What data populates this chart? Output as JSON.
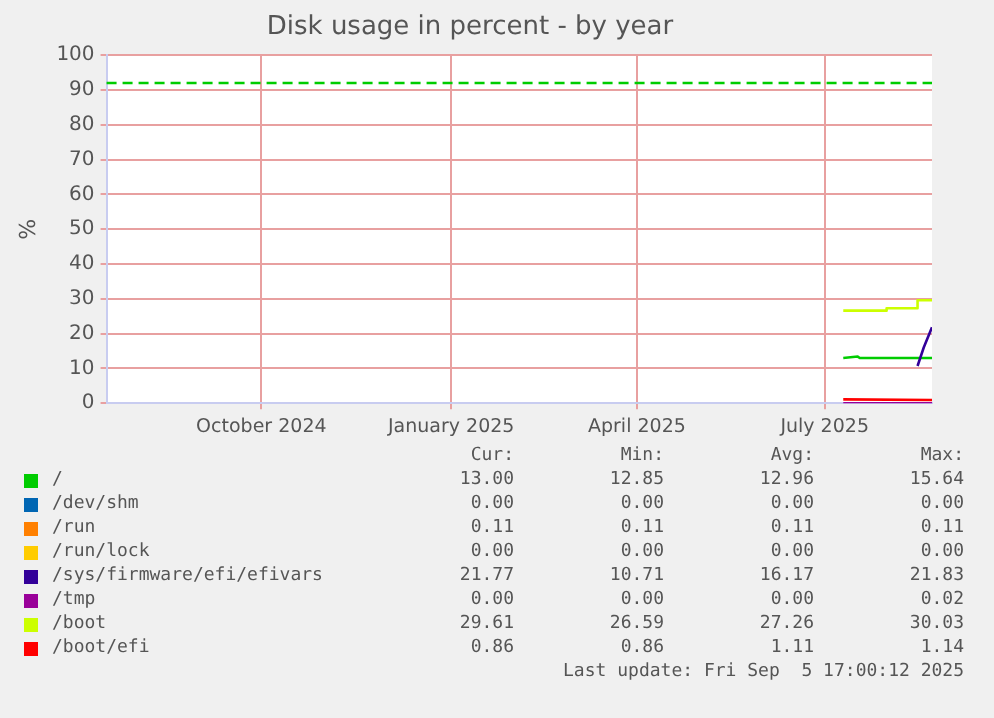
{
  "chart_data": {
    "type": "line",
    "title": "Disk usage in percent - by year",
    "ylabel": "%",
    "xlim": [
      "2024-08-01",
      "2025-09-05"
    ],
    "xticks": [
      {
        "value": "2024-10-15",
        "label": "October 2024"
      },
      {
        "value": "2025-01-15",
        "label": "January 2025"
      },
      {
        "value": "2025-04-15",
        "label": "April 2025"
      },
      {
        "value": "2025-07-15",
        "label": "July 2025"
      }
    ],
    "ylim": [
      0,
      100
    ],
    "yticks": [
      0,
      10,
      20,
      30,
      40,
      50,
      60,
      70,
      80,
      90,
      100
    ],
    "grid": true,
    "legend": "bottom",
    "line_style": "solid",
    "marker": "none",
    "series": [
      {
        "name": "/",
        "color": "#00cc00",
        "x": [
          "2025-07-24",
          "2025-07-31",
          "2025-08-01",
          "2025-09-05"
        ],
        "values": [
          13,
          13.4,
          13,
          13
        ]
      },
      {
        "name": "/dev/shm",
        "color": "#0066b3"
      },
      {
        "name": "/run",
        "color": "#ff8000"
      },
      {
        "name": "/run/lock",
        "color": "#ffcc00"
      },
      {
        "name": "/sys/firmware/efi/efivars",
        "color": "#330099",
        "x": [
          "2025-08-29",
          "2025-09-01",
          "2025-09-05"
        ],
        "values": [
          10.7,
          16,
          21.8
        ]
      },
      {
        "name": "/tmp",
        "color": "#990099",
        "x": [
          "2025-07-24",
          "2025-09-05"
        ],
        "values": [
          0,
          0
        ]
      },
      {
        "name": "/boot",
        "type": "step",
        "color": "#ccff00",
        "x": [
          "2025-07-24",
          "2025-08-14",
          "2025-08-29",
          "2025-09-05"
        ],
        "values": [
          26.6,
          27.3,
          29.6,
          29.6
        ]
      },
      {
        "name": "/boot/efi",
        "color": "#ff0000",
        "x": [
          "2025-07-24",
          "2025-09-05"
        ],
        "values": [
          1.1,
          0.9
        ]
      }
    ],
    "ref_lines": [
      {
        "axis": "y",
        "value": 92,
        "color": "#00cc00",
        "line_style": "dashed"
      }
    ],
    "annotations": [
      "Cur:",
      "Min:",
      "Avg:",
      "Max:",
      "13.00",
      "12.85",
      "12.96",
      "15.64",
      "0.00",
      "0.00",
      "0.00",
      "0.00",
      "0.11",
      "0.11",
      "0.11",
      "0.11",
      "0.00",
      "0.00",
      "0.00",
      "0.00",
      "21.77",
      "10.71",
      "16.17",
      "21.83",
      "0.00",
      "0.00",
      "0.00",
      "0.02",
      "29.61",
      "26.59",
      "27.26",
      "30.03",
      "0.86",
      "0.86",
      "1.11",
      "1.14",
      "Last update: Fri Sep  5 17:00:12 2025"
    ]
  }
}
